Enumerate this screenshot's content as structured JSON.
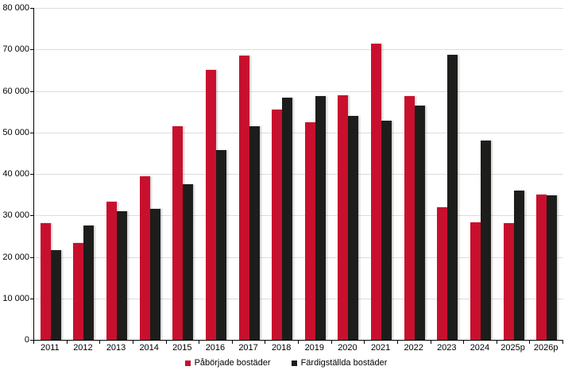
{
  "chart_data": {
    "type": "bar",
    "title": "",
    "xlabel": "",
    "ylabel": "",
    "categories": [
      "2011",
      "2012",
      "2013",
      "2014",
      "2015",
      "2016",
      "2017",
      "2018",
      "2019",
      "2020",
      "2021",
      "2022",
      "2023",
      "2024",
      "2025p",
      "2026p"
    ],
    "series": [
      {
        "name": "Påbörjade bostäder",
        "color": "#C8102E",
        "values": [
          28100,
          23300,
          33300,
          39400,
          51500,
          65000,
          68600,
          55500,
          52400,
          59000,
          71400,
          58800,
          32000,
          28300,
          28200,
          35100
        ]
      },
      {
        "name": "Färdigställda bostäder",
        "color": "#1D1D1B",
        "values": [
          21600,
          27600,
          31000,
          31500,
          37600,
          45800,
          51400,
          58300,
          58800,
          54000,
          52900,
          56500,
          68800,
          48100,
          35900,
          34800
        ]
      }
    ],
    "ylim": [
      0,
      80000
    ],
    "ytick_interval": 10000,
    "ytick_labels": [
      "0",
      "10 000",
      "20 000",
      "30 000",
      "40 000",
      "50 000",
      "60 000",
      "70 000",
      "80 000"
    ],
    "grid": true,
    "legend_position": "bottom-center"
  },
  "colors": {
    "started": "#C8102E",
    "completed": "#1D1D1B",
    "gridline": "#DCDCDC",
    "axis": "#000000",
    "background": "#FFFFFF"
  }
}
